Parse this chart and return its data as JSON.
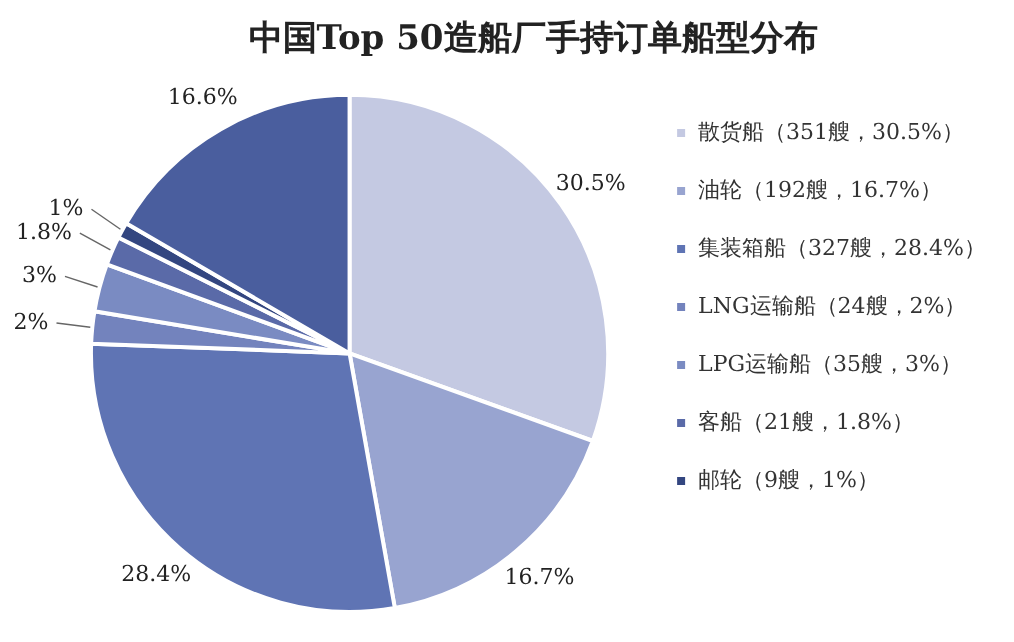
{
  "chart_data": {
    "type": "pie",
    "title": "中国Top 50造船厂手持订单船型分布",
    "categories": [
      "散货船（351艘，30.5%）",
      "油轮（192艘，16.7%）",
      "集装箱船（327艘，28.4%）",
      "LNG运输船（24艘，2%）",
      "LPG运输船（35艘，3%）",
      "客船（21艘，1.8%）",
      "邮轮（9艘，1%）",
      null
    ],
    "values": [
      30.5,
      16.7,
      28.4,
      2,
      3,
      1.8,
      1,
      16.6
    ],
    "value_labels": [
      "30.5%",
      "16.7%",
      "28.4%",
      "2%",
      "3%",
      "1.8%",
      "1%",
      "16.6%"
    ],
    "colors": [
      "#c4c9e2",
      "#98a4d0",
      "#5f74b4",
      "#7383bd",
      "#7a8bc2",
      "#5a6aa8",
      "#334680",
      "#4a5e9e"
    ],
    "legend": "right"
  }
}
